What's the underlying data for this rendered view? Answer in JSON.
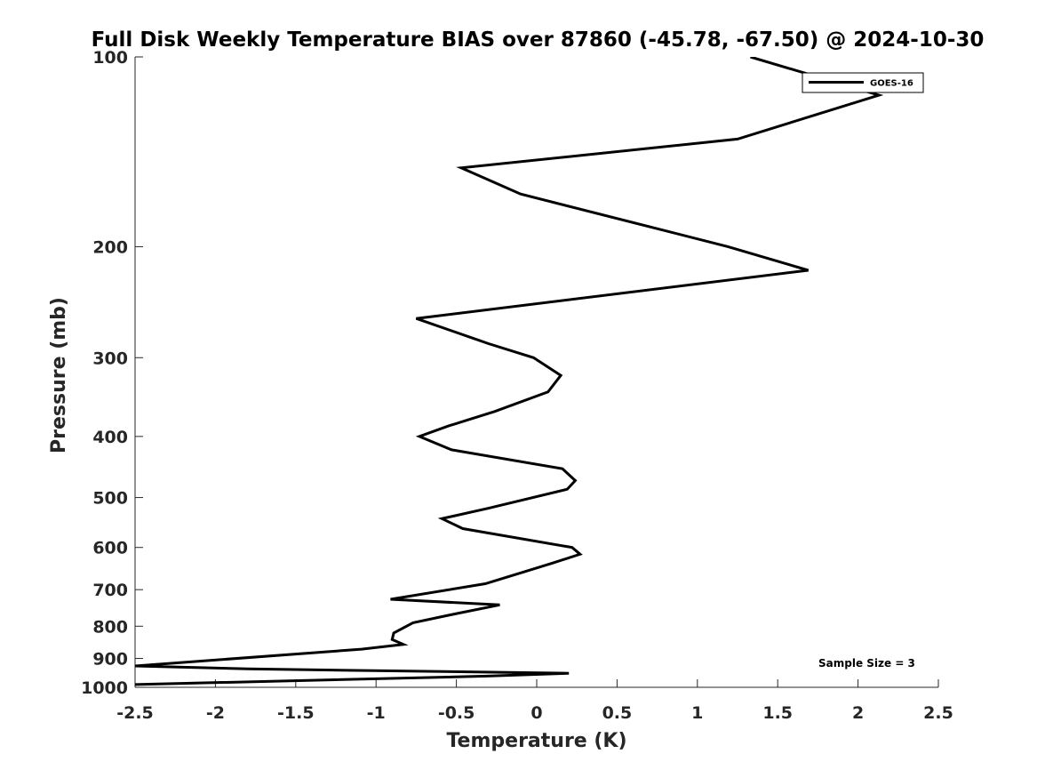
{
  "chart_data": {
    "type": "line",
    "title": "Full Disk Weekly Temperature BIAS over 87860 (-45.78, -67.50) @ 2024-10-30",
    "xlabel": "Temperature (K)",
    "ylabel": "Pressure (mb)",
    "xlim": [
      -2.5,
      2.5
    ],
    "ylim": [
      100,
      1000
    ],
    "yscale": "log",
    "yreversed": true,
    "xticks": [
      -2.5,
      -2,
      -1.5,
      -1,
      -0.5,
      0,
      0.5,
      1,
      1.5,
      2,
      2.5
    ],
    "xtick_labels": [
      "-2.5",
      "-2",
      "-1.5",
      "-1",
      "-0.5",
      "0",
      "0.5",
      "1",
      "1.5",
      "2",
      "2.5"
    ],
    "yticks": [
      100,
      200,
      300,
      400,
      500,
      600,
      700,
      800,
      900,
      1000
    ],
    "ytick_labels": [
      "100",
      "200",
      "300",
      "400",
      "500",
      "600",
      "700",
      "800",
      "900",
      "1000"
    ],
    "grid": false,
    "legend": {
      "entries": [
        "GOES-16"
      ],
      "location": "top-right"
    },
    "annotation": "Sample Size = 3",
    "series": [
      {
        "name": "GOES-16",
        "color": "#000000",
        "points": [
          [
            1.33,
            100
          ],
          [
            2.13,
            115
          ],
          [
            1.25,
            135
          ],
          [
            -0.47,
            150
          ],
          [
            -0.1,
            165
          ],
          [
            1.19,
            200
          ],
          [
            1.69,
            218
          ],
          [
            -0.75,
            260
          ],
          [
            -0.3,
            285
          ],
          [
            -0.02,
            300
          ],
          [
            0.15,
            320
          ],
          [
            0.07,
            340
          ],
          [
            -0.26,
            365
          ],
          [
            -0.55,
            385
          ],
          [
            -0.73,
            400
          ],
          [
            -0.53,
            420
          ],
          [
            0.16,
            450
          ],
          [
            0.24,
            470
          ],
          [
            0.19,
            485
          ],
          [
            -0.3,
            520
          ],
          [
            -0.59,
            540
          ],
          [
            -0.46,
            560
          ],
          [
            0.22,
            600
          ],
          [
            0.27,
            615
          ],
          [
            0.1,
            635
          ],
          [
            -0.07,
            655
          ],
          [
            -0.32,
            685
          ],
          [
            -0.91,
            725
          ],
          [
            -0.23,
            740
          ],
          [
            -0.51,
            765
          ],
          [
            -0.77,
            790
          ],
          [
            -0.89,
            820
          ],
          [
            -0.9,
            840
          ],
          [
            -0.83,
            855
          ],
          [
            -1.09,
            870
          ],
          [
            -2.5,
            925
          ],
          [
            -1.8,
            935
          ],
          [
            0.2,
            950
          ],
          [
            -0.31,
            960
          ],
          [
            -2.5,
            990
          ]
        ]
      }
    ]
  }
}
